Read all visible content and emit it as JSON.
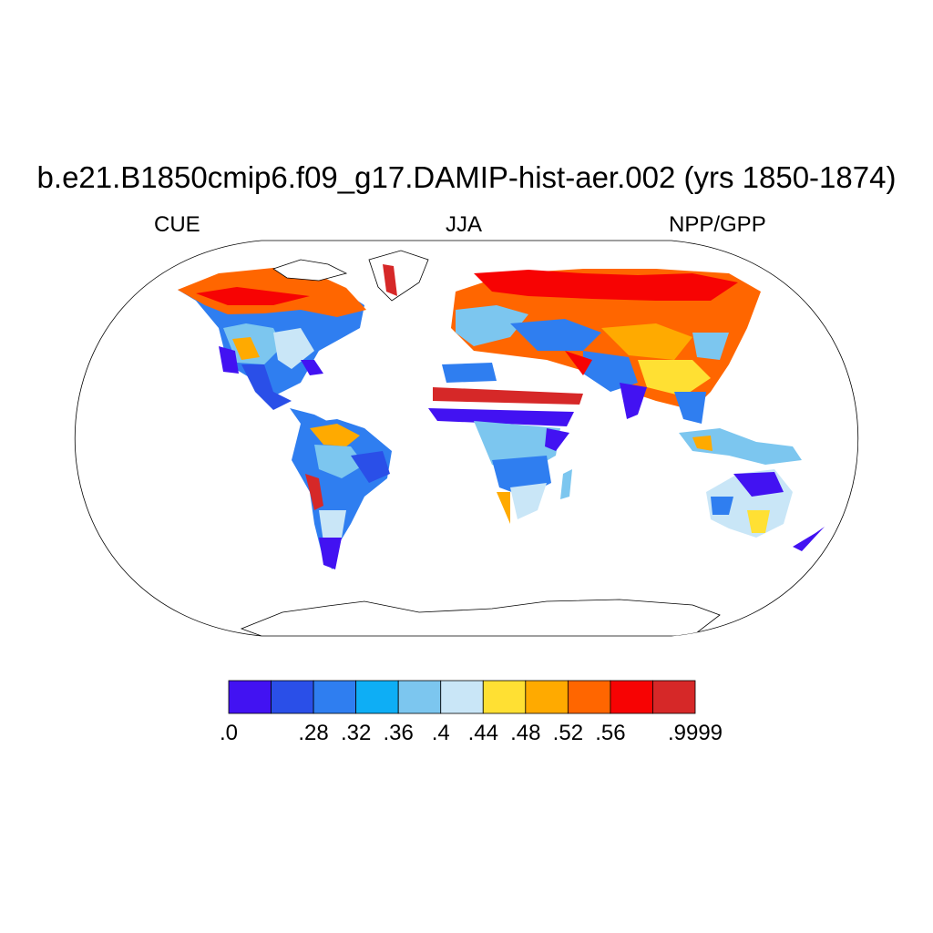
{
  "title": "b.e21.B1850cmip6.f09_g17.DAMIP-hist-aer.002 (yrs 1850-1874)",
  "subtitle_left": "CUE",
  "subtitle_center": "JJA",
  "subtitle_right": "NPP/GPP",
  "colorbar": {
    "colors": [
      "#4212f2",
      "#2a4fe8",
      "#2f7ef0",
      "#0eaef5",
      "#7cc6ef",
      "#c9e6f7",
      "#ffe033",
      "#ffaa00",
      "#ff6600",
      "#f70303",
      "#d62828"
    ],
    "tick_labels": [
      ".0",
      "",
      ".28",
      ".32",
      ".36",
      ".4",
      ".44",
      ".48",
      ".52",
      ".56",
      "",
      ".9999"
    ]
  },
  "legend": {
    "colors": {
      "ocean": "#ffffff",
      "outline": "#000000"
    }
  }
}
